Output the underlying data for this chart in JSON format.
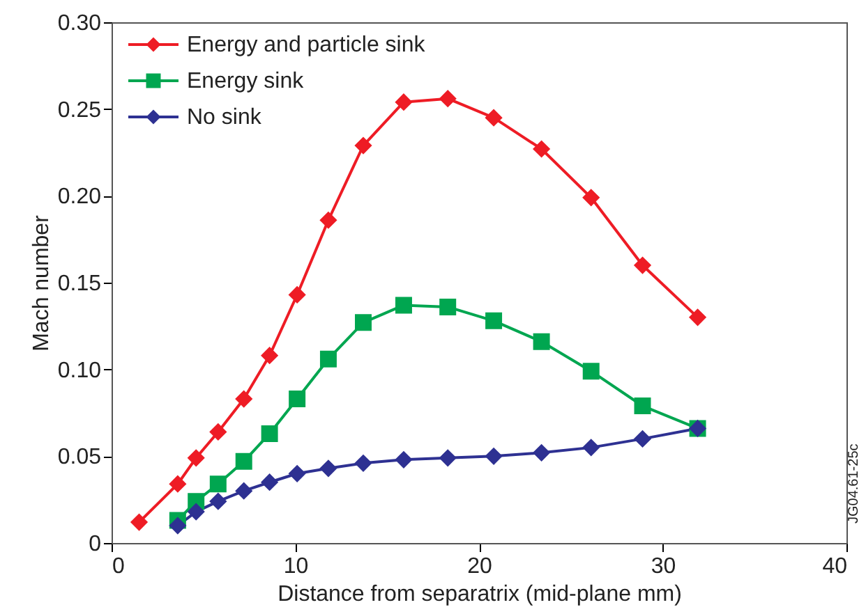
{
  "chart_data": {
    "type": "line",
    "xlabel": "Distance from separatrix (mid-plane mm)",
    "ylabel": "Mach number",
    "xlim": [
      0,
      40
    ],
    "xticks": [
      0,
      10,
      20,
      30,
      40
    ],
    "ylim": [
      0,
      0.3
    ],
    "yticks": [
      0,
      {
        "value": 0.05,
        "label": "0.05"
      },
      {
        "value": 0.1,
        "label": "0.10"
      },
      {
        "value": 0.15,
        "label": "0.15"
      },
      {
        "value": 0.2,
        "label": "0.20"
      },
      {
        "value": 0.25,
        "label": "0.25"
      },
      {
        "value": 0.3,
        "label": "0.30"
      }
    ],
    "grid": false,
    "legend": "top left",
    "annotations": [
      {
        "text": "JG04.61-25c"
      }
    ],
    "series": [
      {
        "name": "Energy and particle sink",
        "color": "#ee1c25",
        "marker": "diamond",
        "x": [
          1.5,
          3.6,
          4.6,
          5.8,
          7.2,
          8.6,
          10.1,
          11.8,
          13.7,
          15.9,
          18.3,
          20.8,
          23.4,
          26.1,
          28.9,
          31.9
        ],
        "values": [
          0.012,
          0.034,
          0.049,
          0.064,
          0.083,
          0.108,
          0.143,
          0.186,
          0.229,
          0.254,
          0.256,
          0.245,
          0.227,
          0.199,
          0.16,
          0.13
        ]
      },
      {
        "name": "Energy sink",
        "color": "#00a650",
        "marker": "square",
        "x": [
          3.6,
          4.6,
          5.8,
          7.2,
          8.6,
          10.1,
          11.8,
          13.7,
          15.9,
          18.3,
          20.8,
          23.4,
          26.1,
          28.9,
          31.9
        ],
        "values": [
          0.013,
          0.024,
          0.034,
          0.047,
          0.063,
          0.083,
          0.106,
          0.127,
          0.137,
          0.136,
          0.128,
          0.116,
          0.099,
          0.079,
          0.066
        ]
      },
      {
        "name": "No sink",
        "color": "#2e3192",
        "marker": "diamond",
        "x": [
          3.6,
          4.6,
          5.8,
          7.2,
          8.6,
          10.1,
          11.8,
          13.7,
          15.9,
          18.3,
          20.8,
          23.4,
          26.1,
          28.9,
          31.9
        ],
        "values": [
          0.01,
          0.018,
          0.024,
          0.03,
          0.035,
          0.04,
          0.043,
          0.046,
          0.048,
          0.049,
          0.05,
          0.052,
          0.055,
          0.06,
          0.066
        ]
      }
    ]
  }
}
